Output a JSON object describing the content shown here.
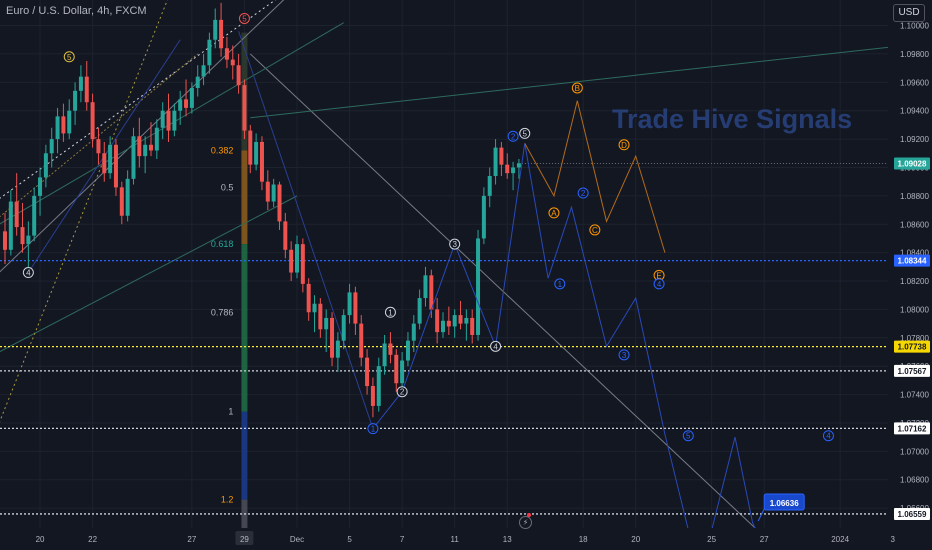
{
  "header": {
    "symbol_line": "Euro / U.S. Dollar, 4h, FXCM"
  },
  "currency_button": {
    "label": "USD"
  },
  "watermark": {
    "text": "Trade Hive Signals"
  },
  "colors": {
    "background": "#131722",
    "grid": "#1e222d",
    "axis_text": "#b2b5be",
    "bull": "#26a69a",
    "bear": "#ef5350",
    "current_price": "#26a69a",
    "level_blue": "#2962ff",
    "level_yellow": "#ffeb3b",
    "level_white": "#d1d4dc",
    "wave_blue": "#2962ff",
    "wave_orange": "#ff9800",
    "trend_gray": "#787b86"
  },
  "icons": {
    "flash": "lightning-icon"
  },
  "chart_data": {
    "type": "candlestick",
    "title": "Euro / U.S. Dollar, 4h, FXCM",
    "ylim": [
      1.0646,
      1.1018
    ],
    "y_ticks": [
      "1.10000",
      "1.09800",
      "1.09600",
      "1.09400",
      "1.09200",
      "1.09000",
      "1.08800",
      "1.08600",
      "1.08400",
      "1.08200",
      "1.08000",
      "1.07800",
      "1.07600",
      "1.07400",
      "1.07200",
      "1.07000",
      "1.06800",
      "1.06600"
    ],
    "x_ticks": [
      "20",
      "22",
      "27",
      "29",
      "Dec",
      "5",
      "7",
      "11",
      "13",
      "18",
      "20",
      "25",
      "27",
      "2024",
      "3"
    ],
    "x_tick_index": [
      6,
      15,
      32,
      41,
      50,
      59,
      68,
      77,
      86,
      99,
      108,
      121,
      130,
      143,
      152
    ],
    "x_tick_highlight": "29",
    "candle_count": 89,
    "candles": [
      [
        1.0855,
        1.0868,
        1.0832,
        1.0842
      ],
      [
        1.0842,
        1.0884,
        1.0838,
        1.0876
      ],
      [
        1.0876,
        1.0896,
        1.0852,
        1.0858
      ],
      [
        1.0858,
        1.0875,
        1.084,
        1.0846
      ],
      [
        1.0846,
        1.0862,
        1.0828,
        1.0852
      ],
      [
        1.0852,
        1.0886,
        1.0848,
        1.088
      ],
      [
        1.088,
        1.09,
        1.0866,
        1.0893
      ],
      [
        1.0893,
        1.0916,
        1.0886,
        1.091
      ],
      [
        1.091,
        1.0928,
        1.09,
        1.092
      ],
      [
        1.092,
        1.0942,
        1.091,
        1.0936
      ],
      [
        1.0936,
        1.0945,
        1.0918,
        1.0924
      ],
      [
        1.0924,
        1.0948,
        1.092,
        1.094
      ],
      [
        1.094,
        1.096,
        1.093,
        1.0954
      ],
      [
        1.0954,
        1.0972,
        1.0946,
        1.0964
      ],
      [
        1.0964,
        1.0975,
        1.094,
        1.0946
      ],
      [
        1.0946,
        1.0952,
        1.0914,
        1.092
      ],
      [
        1.092,
        1.0928,
        1.0902,
        1.091
      ],
      [
        1.091,
        1.0918,
        1.089,
        1.0896
      ],
      [
        1.0896,
        1.0922,
        1.0892,
        1.0916
      ],
      [
        1.0916,
        1.092,
        1.088,
        1.0886
      ],
      [
        1.0886,
        1.089,
        1.086,
        1.0866
      ],
      [
        1.0866,
        1.0898,
        1.0862,
        1.0892
      ],
      [
        1.0892,
        1.0928,
        1.0888,
        1.0922
      ],
      [
        1.0922,
        1.0935,
        1.09,
        1.0908
      ],
      [
        1.0908,
        1.0922,
        1.0896,
        1.0916
      ],
      [
        1.0916,
        1.0932,
        1.0908,
        1.0912
      ],
      [
        1.0912,
        1.0934,
        1.0906,
        1.0928
      ],
      [
        1.0928,
        1.0946,
        1.092,
        1.094
      ],
      [
        1.094,
        1.0952,
        1.0918,
        1.0926
      ],
      [
        1.0926,
        1.0945,
        1.0922,
        1.094
      ],
      [
        1.094,
        1.0954,
        1.093,
        1.0948
      ],
      [
        1.0948,
        1.0962,
        1.0936,
        1.0942
      ],
      [
        1.0942,
        1.096,
        1.0938,
        1.0956
      ],
      [
        1.0956,
        1.0972,
        1.095,
        1.0964
      ],
      [
        1.0964,
        1.098,
        1.0958,
        1.0972
      ],
      [
        1.0972,
        1.0995,
        1.0966,
        1.099
      ],
      [
        1.099,
        1.1012,
        1.0984,
        1.1004
      ],
      [
        1.1004,
        1.1016,
        1.0978,
        1.0984
      ],
      [
        1.0984,
        1.0992,
        1.097,
        1.0976
      ],
      [
        1.0976,
        1.0986,
        1.0962,
        1.0972
      ],
      [
        1.0972,
        1.098,
        1.0952,
        1.0958
      ],
      [
        1.0958,
        1.0962,
        1.092,
        1.0926
      ],
      [
        1.0926,
        1.093,
        1.0896,
        1.0902
      ],
      [
        1.0902,
        1.0924,
        1.0898,
        1.0918
      ],
      [
        1.0918,
        1.0922,
        1.0884,
        1.089
      ],
      [
        1.089,
        1.0898,
        1.087,
        1.0876
      ],
      [
        1.0876,
        1.0892,
        1.0872,
        1.0888
      ],
      [
        1.0888,
        1.089,
        1.0856,
        1.0862
      ],
      [
        1.0862,
        1.0868,
        1.0836,
        1.0842
      ],
      [
        1.0842,
        1.0848,
        1.082,
        1.0826
      ],
      [
        1.0826,
        1.0852,
        1.0822,
        1.0846
      ],
      [
        1.0846,
        1.085,
        1.0812,
        1.0818
      ],
      [
        1.0818,
        1.0822,
        1.0792,
        1.0798
      ],
      [
        1.0798,
        1.081,
        1.0784,
        1.0804
      ],
      [
        1.0804,
        1.0808,
        1.078,
        1.0786
      ],
      [
        1.0786,
        1.08,
        1.077,
        1.0794
      ],
      [
        1.0794,
        1.0798,
        1.076,
        1.0766
      ],
      [
        1.0766,
        1.0784,
        1.0756,
        1.0778
      ],
      [
        1.0778,
        1.08,
        1.0772,
        1.0796
      ],
      [
        1.0796,
        1.0818,
        1.079,
        1.0812
      ],
      [
        1.0812,
        1.0816,
        1.0782,
        1.079
      ],
      [
        1.079,
        1.0796,
        1.076,
        1.0766
      ],
      [
        1.0766,
        1.0772,
        1.074,
        1.0746
      ],
      [
        1.0746,
        1.0752,
        1.0724,
        1.0732
      ],
      [
        1.0732,
        1.0766,
        1.0728,
        1.076
      ],
      [
        1.076,
        1.0782,
        1.0754,
        1.0776
      ],
      [
        1.0776,
        1.0784,
        1.0762,
        1.0768
      ],
      [
        1.0768,
        1.0772,
        1.0742,
        1.0748
      ],
      [
        1.0748,
        1.077,
        1.0744,
        1.0764
      ],
      [
        1.0764,
        1.0784,
        1.076,
        1.0778
      ],
      [
        1.0778,
        1.0796,
        1.077,
        1.079
      ],
      [
        1.079,
        1.0814,
        1.0786,
        1.0808
      ],
      [
        1.0808,
        1.083,
        1.0802,
        1.0824
      ],
      [
        1.0824,
        1.0828,
        1.0794,
        1.08
      ],
      [
        1.08,
        1.0808,
        1.0776,
        1.0784
      ],
      [
        1.0784,
        1.0798,
        1.078,
        1.0792
      ],
      [
        1.0792,
        1.0802,
        1.0782,
        1.0788
      ],
      [
        1.0788,
        1.08,
        1.078,
        1.0796
      ],
      [
        1.0796,
        1.0806,
        1.0786,
        1.079
      ],
      [
        1.079,
        1.08,
        1.0778,
        1.0794
      ],
      [
        1.0794,
        1.08,
        1.0776,
        1.0782
      ],
      [
        1.0782,
        1.0856,
        1.0778,
        1.085
      ],
      [
        1.085,
        1.0886,
        1.0846,
        1.088
      ],
      [
        1.088,
        1.09,
        1.0872,
        1.0894
      ],
      [
        1.0894,
        1.092,
        1.0888,
        1.0914
      ],
      [
        1.0914,
        1.0918,
        1.0894,
        1.0902
      ],
      [
        1.0902,
        1.091,
        1.0892,
        1.0896
      ],
      [
        1.0896,
        1.0904,
        1.0884,
        1.09
      ],
      [
        1.09,
        1.0906,
        1.0892,
        1.0903
      ]
    ],
    "current_price": {
      "label": "1.09028",
      "value": 1.09028
    },
    "horizontal_levels": [
      {
        "label": "1.08344",
        "value": 1.08344,
        "color": "#2962ff",
        "style": "dotted"
      },
      {
        "label": "1.07738",
        "value": 1.07738,
        "color": "#ffeb3b",
        "style": "dotted"
      },
      {
        "label": "1.07567",
        "value": 1.07567,
        "color": "#d1d4dc",
        "style": "dotted"
      },
      {
        "label": "1.07162",
        "value": 1.07162,
        "color": "#d1d4dc",
        "style": "dotted"
      },
      {
        "label": "1.06559",
        "value": 1.06559,
        "color": "#d1d4dc",
        "style": "dotted"
      }
    ],
    "fib_levels": [
      {
        "label": "0.382",
        "value": 1.0912,
        "color": "#ff9800"
      },
      {
        "label": "0.5",
        "value": 1.0886,
        "color": "#b2b5be"
      },
      {
        "label": "0.618",
        "value": 1.0846,
        "color": "#26a69a"
      },
      {
        "label": "0.786",
        "value": 1.0798,
        "color": "#b2b5be"
      },
      {
        "label": "1",
        "value": 1.0728,
        "color": "#b2b5be"
      },
      {
        "label": "1.2",
        "value": 1.0666,
        "color": "#ff9800"
      }
    ],
    "price_callout": {
      "label": "1.06636",
      "value": 1.06636,
      "x": 130
    },
    "wave_blue_path": [
      [
        63,
        1.0716
      ],
      [
        68,
        1.0742
      ],
      [
        77,
        1.0846
      ],
      [
        84,
        1.0774
      ],
      [
        89,
        1.0917
      ],
      [
        93,
        1.0822
      ],
      [
        97,
        1.0872
      ],
      [
        103,
        1.0774
      ],
      [
        108,
        1.0808
      ],
      [
        113,
        1.0712
      ],
      [
        118,
        1.0628
      ],
      [
        120,
        1.0628
      ],
      [
        125,
        1.071
      ],
      [
        128,
        1.065
      ],
      [
        130,
        1.063
      ]
    ],
    "wave_orange_path": [
      [
        89,
        1.0917
      ],
      [
        94,
        1.088
      ],
      [
        98,
        1.0947
      ],
      [
        103,
        1.0862
      ],
      [
        108,
        1.0908
      ],
      [
        113,
        1.084
      ]
    ],
    "wave_labels": [
      {
        "text": "5",
        "x": 11,
        "y": 1.0978,
        "color": "yellow"
      },
      {
        "text": "4",
        "x": 4,
        "y": 1.0826,
        "color": "white"
      },
      {
        "text": "5",
        "x": 41,
        "y": 1.1005,
        "color": "red"
      },
      {
        "text": "1",
        "x": 63,
        "y": 1.0716,
        "color": "blue"
      },
      {
        "text": "2",
        "x": 68,
        "y": 1.0742,
        "color": "white"
      },
      {
        "text": "1",
        "x": 66,
        "y": 1.0798,
        "color": "white"
      },
      {
        "text": "3",
        "x": 77,
        "y": 1.0846,
        "color": "white"
      },
      {
        "text": "4",
        "x": 84,
        "y": 1.0774,
        "color": "white"
      },
      {
        "text": "2",
        "x": 87,
        "y": 1.0922,
        "color": "blue"
      },
      {
        "text": "5",
        "x": 89,
        "y": 1.0924,
        "color": "white"
      },
      {
        "text": "A",
        "x": 94,
        "y": 1.0868,
        "color": "orange"
      },
      {
        "text": "B",
        "x": 98,
        "y": 1.0956,
        "color": "orange"
      },
      {
        "text": "1",
        "x": 95,
        "y": 1.0818,
        "color": "blue"
      },
      {
        "text": "2",
        "x": 99,
        "y": 1.0882,
        "color": "blue"
      },
      {
        "text": "C",
        "x": 101,
        "y": 1.0856,
        "color": "orange"
      },
      {
        "text": "D",
        "x": 106,
        "y": 1.0916,
        "color": "orange"
      },
      {
        "text": "E",
        "x": 112,
        "y": 1.0824,
        "color": "orange"
      },
      {
        "text": "4",
        "x": 112,
        "y": 1.0818,
        "color": "blue"
      },
      {
        "text": "3",
        "x": 106,
        "y": 1.0768,
        "color": "blue"
      },
      {
        "text": "5",
        "x": 117,
        "y": 1.0711,
        "color": "blue"
      },
      {
        "text": "4",
        "x": 141,
        "y": 1.0711,
        "color": "blue"
      }
    ]
  }
}
